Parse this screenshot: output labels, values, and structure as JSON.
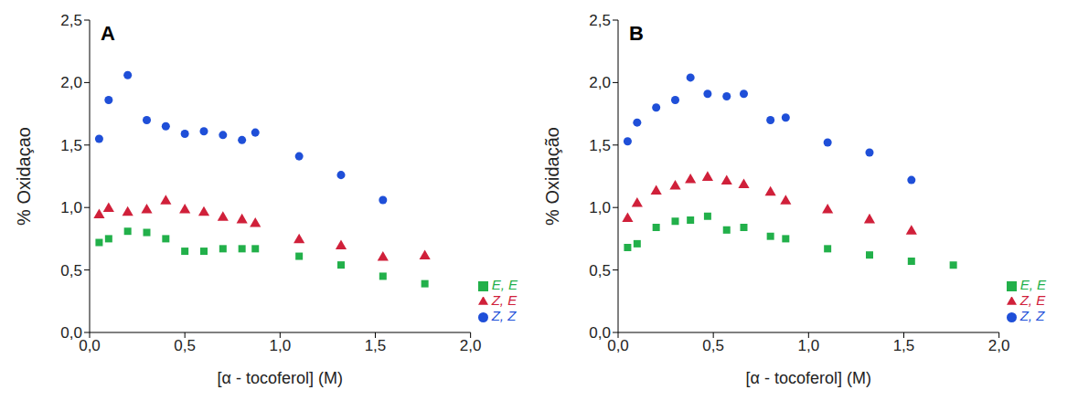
{
  "chart_data": [
    {
      "type": "scatter",
      "title": "A",
      "x_label": "[α - tocoferol] (M)",
      "y_label": "% Oxidaçao",
      "xlim": [
        0,
        2
      ],
      "xticks": [
        {
          "value": 0,
          "label": "0,0"
        },
        {
          "value": 0.5,
          "label": "0,5"
        },
        {
          "value": 1,
          "label": "1,0"
        },
        {
          "value": 1.5,
          "label": "1,5"
        },
        {
          "value": 2,
          "label": "2,0"
        }
      ],
      "ylim": [
        0,
        2.5
      ],
      "yticks": [
        {
          "value": 0,
          "label": "0,0"
        },
        {
          "value": 0.5,
          "label": "0,5"
        },
        {
          "value": 1,
          "label": "1,0"
        },
        {
          "value": 1.5,
          "label": "1,5"
        },
        {
          "value": 2,
          "label": "2,0"
        },
        {
          "value": 2.5,
          "label": "2,5"
        }
      ],
      "grid": false,
      "legend": "right",
      "series": [
        {
          "name": "Z, Z",
          "color": "#1f4fd8",
          "marker": "circle",
          "x": [
            0.05,
            0.1,
            0.2,
            0.3,
            0.4,
            0.5,
            0.6,
            0.7,
            0.8,
            0.87,
            1.1,
            1.32,
            1.54
          ],
          "values": [
            1.55,
            1.86,
            2.06,
            1.7,
            1.65,
            1.59,
            1.61,
            1.58,
            1.54,
            1.6,
            1.41,
            1.26,
            1.06
          ]
        },
        {
          "name": "Z, E",
          "color": "#d0203a",
          "marker": "triangle",
          "x": [
            0.05,
            0.1,
            0.2,
            0.3,
            0.4,
            0.5,
            0.6,
            0.7,
            0.8,
            0.87,
            1.1,
            1.32,
            1.54,
            1.76
          ],
          "values": [
            0.94,
            0.99,
            0.96,
            0.98,
            1.05,
            0.98,
            0.96,
            0.92,
            0.9,
            0.87,
            0.74,
            0.69,
            0.6,
            0.61
          ]
        },
        {
          "name": "E, E",
          "color": "#22b04a",
          "marker": "square",
          "x": [
            0.05,
            0.1,
            0.2,
            0.3,
            0.4,
            0.5,
            0.6,
            0.7,
            0.8,
            0.87,
            1.1,
            1.32,
            1.54,
            1.76
          ],
          "values": [
            0.72,
            0.75,
            0.81,
            0.8,
            0.75,
            0.65,
            0.65,
            0.67,
            0.67,
            0.67,
            0.61,
            0.54,
            0.45,
            0.39
          ]
        }
      ]
    },
    {
      "type": "scatter",
      "title": "B",
      "x_label": "[α - tocoferol] (M)",
      "y_label": "% Oxidação",
      "xlim": [
        0,
        2
      ],
      "xticks": [
        {
          "value": 0,
          "label": "0,0"
        },
        {
          "value": 0.5,
          "label": "0,5"
        },
        {
          "value": 1,
          "label": "1,0"
        },
        {
          "value": 1.5,
          "label": "1,5"
        },
        {
          "value": 2,
          "label": "2,0"
        }
      ],
      "ylim": [
        0,
        2.5
      ],
      "yticks": [
        {
          "value": 0,
          "label": "0,0"
        },
        {
          "value": 0.5,
          "label": "0,5"
        },
        {
          "value": 1,
          "label": "1,0"
        },
        {
          "value": 1.5,
          "label": "1,5"
        },
        {
          "value": 2,
          "label": "2,0"
        },
        {
          "value": 2.5,
          "label": "2,5"
        }
      ],
      "grid": false,
      "legend": "right",
      "series": [
        {
          "name": "Z, Z",
          "color": "#1f4fd8",
          "marker": "circle",
          "x": [
            0.05,
            0.1,
            0.2,
            0.3,
            0.38,
            0.47,
            0.57,
            0.66,
            0.8,
            0.88,
            1.1,
            1.32,
            1.54
          ],
          "values": [
            1.53,
            1.68,
            1.8,
            1.86,
            2.04,
            1.91,
            1.89,
            1.91,
            1.7,
            1.72,
            1.52,
            1.44,
            1.22
          ]
        },
        {
          "name": "Z, E",
          "color": "#d0203a",
          "marker": "triangle",
          "x": [
            0.05,
            0.1,
            0.2,
            0.3,
            0.38,
            0.47,
            0.57,
            0.66,
            0.8,
            0.88,
            1.1,
            1.32,
            1.54
          ],
          "values": [
            0.91,
            1.03,
            1.13,
            1.17,
            1.22,
            1.24,
            1.21,
            1.18,
            1.12,
            1.05,
            0.98,
            0.9,
            0.81
          ]
        },
        {
          "name": "E, E",
          "color": "#22b04a",
          "marker": "square",
          "x": [
            0.05,
            0.1,
            0.2,
            0.3,
            0.38,
            0.47,
            0.57,
            0.66,
            0.8,
            0.88,
            1.1,
            1.32,
            1.54,
            1.76
          ],
          "values": [
            0.68,
            0.71,
            0.84,
            0.89,
            0.9,
            0.93,
            0.82,
            0.84,
            0.77,
            0.75,
            0.67,
            0.62,
            0.57,
            0.54
          ]
        }
      ]
    }
  ]
}
